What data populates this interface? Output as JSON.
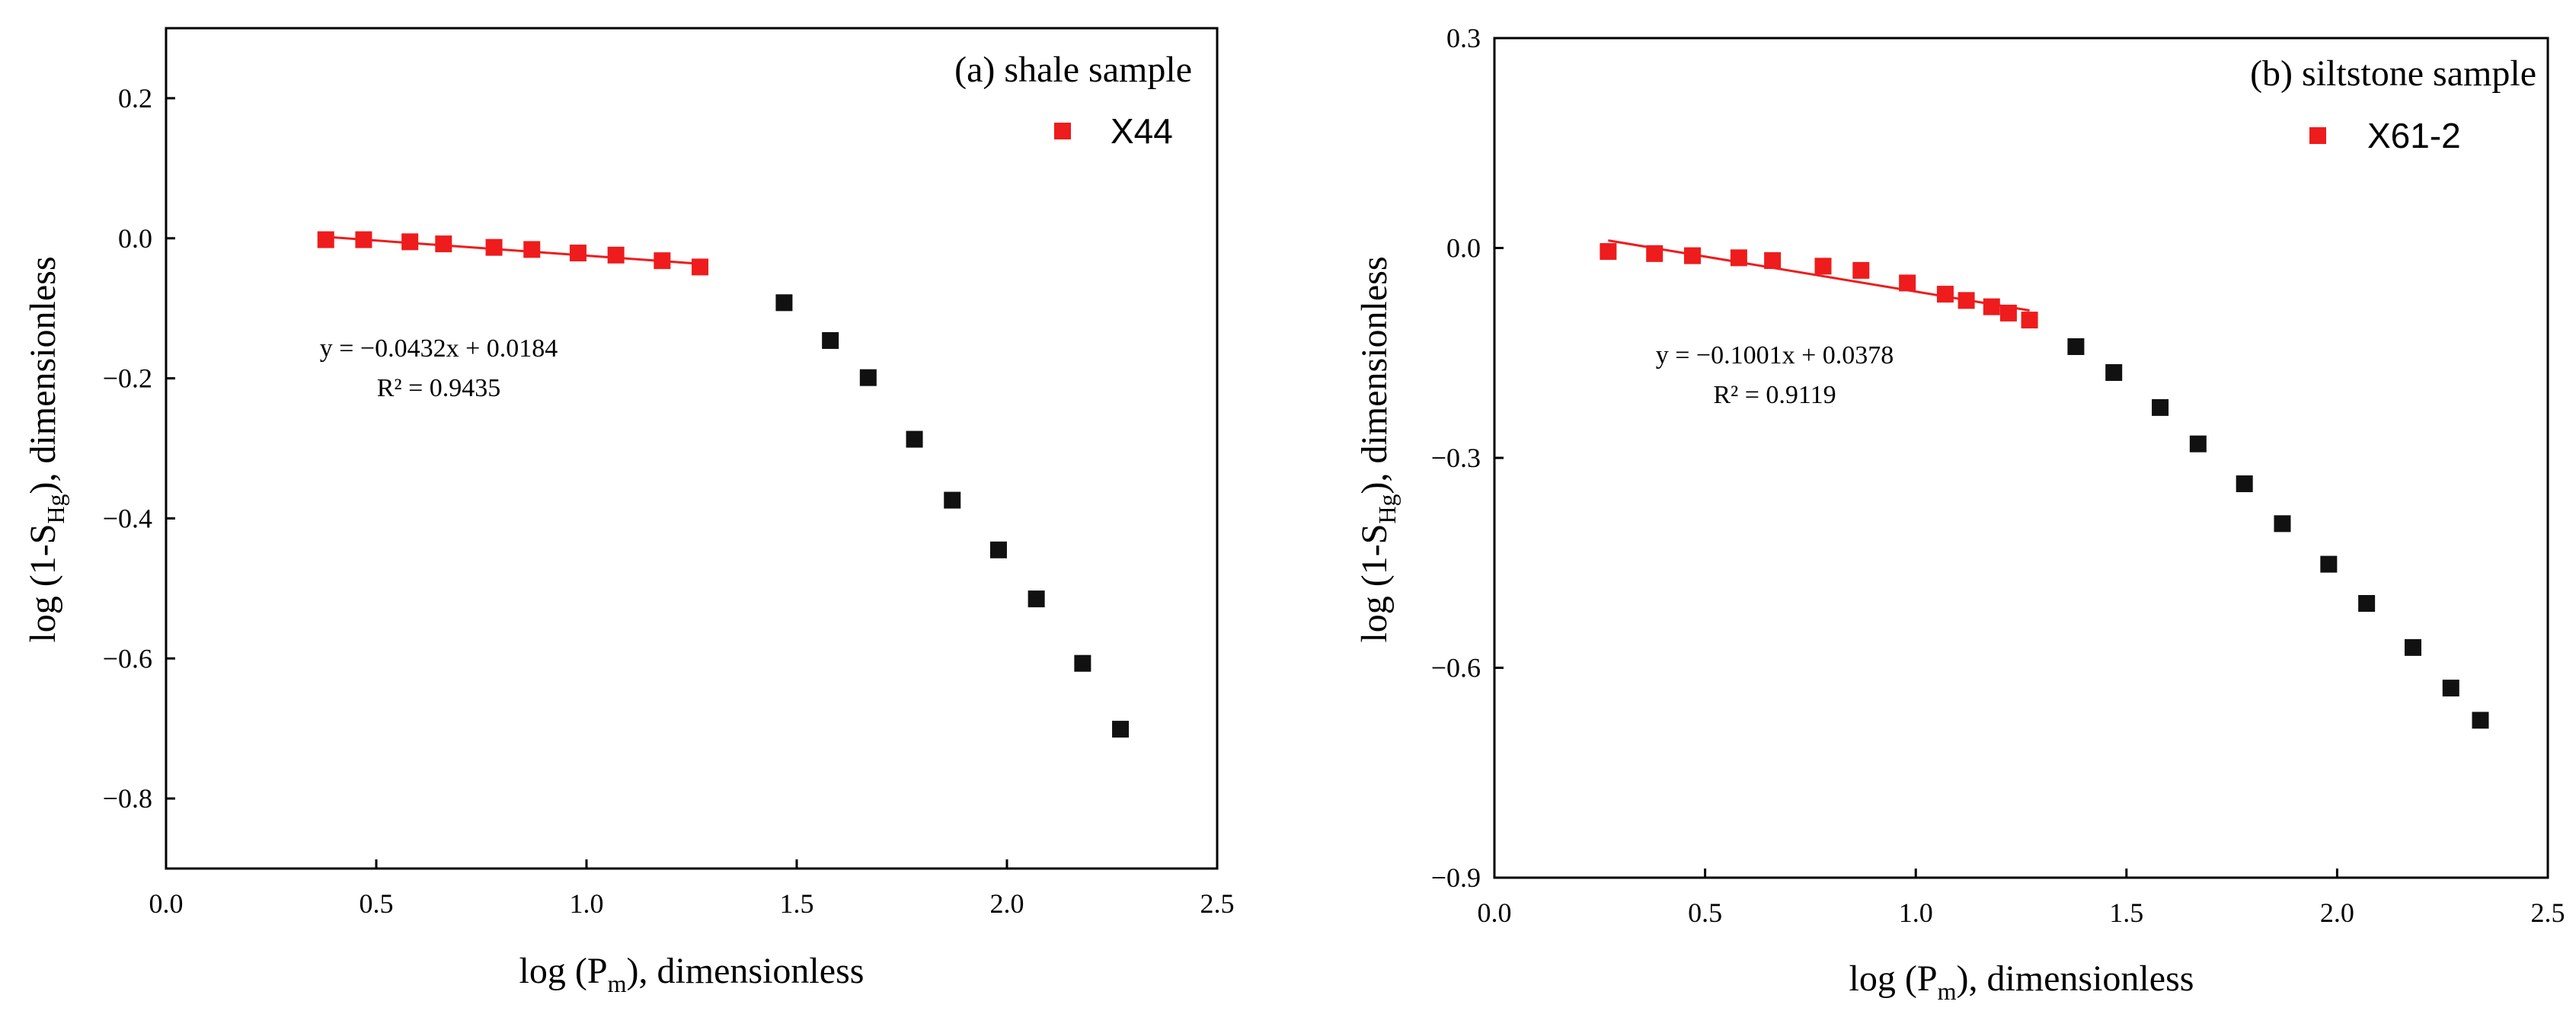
{
  "chart_data": [
    {
      "type": "scatter",
      "title": "(a) shale sample",
      "xlabel_prefix": "log (P",
      "xlabel_sub": "m",
      "xlabel_suffix": "), dimensionless",
      "ylabel_prefix": "log (1-S",
      "ylabel_sub": "Hg",
      "ylabel_suffix": "), dimensionless",
      "xlim": [
        0.0,
        2.5
      ],
      "ylim": [
        -0.9,
        0.3
      ],
      "xticks": [
        0.0,
        0.5,
        1.0,
        1.5,
        2.0,
        2.5
      ],
      "xtick_labels": [
        "0.0",
        "0.5",
        "1.0",
        "1.5",
        "2.0",
        "2.5"
      ],
      "yticks": [
        -0.8,
        -0.6,
        -0.4,
        -0.2,
        0.0,
        0.2
      ],
      "ytick_labels": [
        "−0.8",
        "−0.6",
        "−0.4",
        "−0.2",
        "0.0",
        "0.2"
      ],
      "legend": {
        "label": "X44",
        "color": "#ee1c1c"
      },
      "series": [
        {
          "name": "X44 fitted",
          "color": "#ee1c1c",
          "x": [
            0.38,
            0.47,
            0.58,
            0.66,
            0.78,
            0.87,
            0.98,
            1.07,
            1.18,
            1.27
          ],
          "y": [
            -0.002,
            -0.002,
            -0.005,
            -0.008,
            -0.013,
            -0.016,
            -0.021,
            -0.024,
            -0.032,
            -0.041
          ]
        },
        {
          "name": "X44 remaining",
          "color": "#111111",
          "x": [
            1.47,
            1.58,
            1.67,
            1.78,
            1.87,
            1.98,
            2.07,
            2.18,
            2.27
          ],
          "y": [
            -0.092,
            -0.146,
            -0.199,
            -0.287,
            -0.374,
            -0.445,
            -0.515,
            -0.607,
            -0.701
          ]
        }
      ],
      "fit": {
        "slope": -0.0432,
        "intercept": 0.0184,
        "x_range": [
          0.38,
          1.27
        ],
        "color": "#ee1c1c",
        "equation": "y = −0.0432x + 0.0184",
        "r2": "R² = 0.9435"
      }
    },
    {
      "type": "scatter",
      "title": "(b) siltstone sample",
      "xlabel_prefix": "log (P",
      "xlabel_sub": "m",
      "xlabel_suffix": "), dimensionless",
      "ylabel_prefix": "log (1-S",
      "ylabel_sub": "Hg",
      "ylabel_suffix": "), dimensionless",
      "xlim": [
        0.0,
        2.5
      ],
      "ylim": [
        -0.9,
        0.3
      ],
      "xticks": [
        0.0,
        0.5,
        1.0,
        1.5,
        2.0,
        2.5
      ],
      "xtick_labels": [
        "0.0",
        "0.5",
        "1.0",
        "1.5",
        "2.0",
        "2.5"
      ],
      "yticks": [
        -0.9,
        -0.6,
        -0.3,
        0.0,
        0.3
      ],
      "ytick_labels": [
        "−0.9",
        "−0.6",
        "−0.3",
        "0.0",
        "0.3"
      ],
      "legend": {
        "label": "X61-2",
        "color": "#ee1c1c"
      },
      "series": [
        {
          "name": "X61-2 fitted",
          "color": "#ee1c1c",
          "x": [
            0.27,
            0.38,
            0.47,
            0.58,
            0.66,
            0.78,
            0.87,
            0.98,
            1.07,
            1.12,
            1.18,
            1.22,
            1.27
          ],
          "y": [
            -0.005,
            -0.008,
            -0.011,
            -0.014,
            -0.018,
            -0.026,
            -0.032,
            -0.05,
            -0.066,
            -0.075,
            -0.084,
            -0.093,
            -0.103
          ]
        },
        {
          "name": "X61-2 remaining",
          "color": "#111111",
          "x": [
            1.38,
            1.47,
            1.58,
            1.67,
            1.78,
            1.87,
            1.98,
            2.07,
            2.18,
            2.27,
            2.34
          ],
          "y": [
            -0.141,
            -0.178,
            -0.228,
            -0.28,
            -0.337,
            -0.394,
            -0.452,
            -0.508,
            -0.571,
            -0.629,
            -0.675
          ]
        }
      ],
      "fit": {
        "slope": -0.1001,
        "intercept": 0.0378,
        "x_range": [
          0.27,
          1.27
        ],
        "color": "#ee1c1c",
        "equation": "y = −0.1001x + 0.0378",
        "r2": "R² = 0.9119"
      }
    }
  ]
}
